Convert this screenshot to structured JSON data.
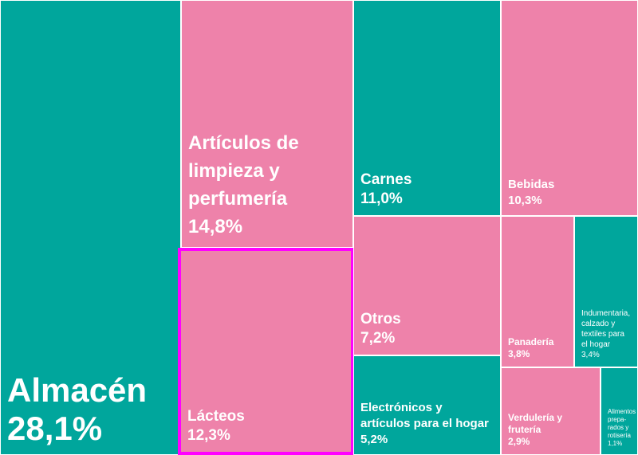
{
  "chart_data": {
    "type": "treemap",
    "colors": {
      "green": "#00a69c",
      "pink": "#ee82aa",
      "highlight": "#ff00ff"
    },
    "items": [
      {
        "label": "Almacén",
        "value": 28.1,
        "value_label": "28,1%",
        "color": "green"
      },
      {
        "label": "Artículos de limpieza y perfumería",
        "value": 14.8,
        "value_label": "14,8%",
        "color": "pink"
      },
      {
        "label": "Lácteos",
        "value": 12.3,
        "value_label": "12,3%",
        "color": "pink",
        "highlighted": true
      },
      {
        "label": "Carnes",
        "value": 11.0,
        "value_label": "11,0%",
        "color": "green"
      },
      {
        "label": "Otros",
        "value": 7.2,
        "value_label": "7,2%",
        "color": "pink"
      },
      {
        "label": "Electrónicos y artículos para el hogar",
        "value": 5.2,
        "value_label": "5,2%",
        "color": "green"
      },
      {
        "label": "Bebidas",
        "value": 10.3,
        "value_label": "10,3%",
        "color": "pink"
      },
      {
        "label": "Panadería",
        "value": 3.8,
        "value_label": "3,8%",
        "color": "pink"
      },
      {
        "label": "Indumentaria, calzado y textiles para el hogar",
        "value": 3.4,
        "value_label": "3,4%",
        "color": "green"
      },
      {
        "label": "Verdulería y frutería",
        "value": 2.9,
        "value_label": "2,9%",
        "color": "pink"
      },
      {
        "label": "Alimentos prepa-rados y rotisería",
        "value": 1.1,
        "value_label": "1,1%",
        "color": "green"
      }
    ]
  }
}
